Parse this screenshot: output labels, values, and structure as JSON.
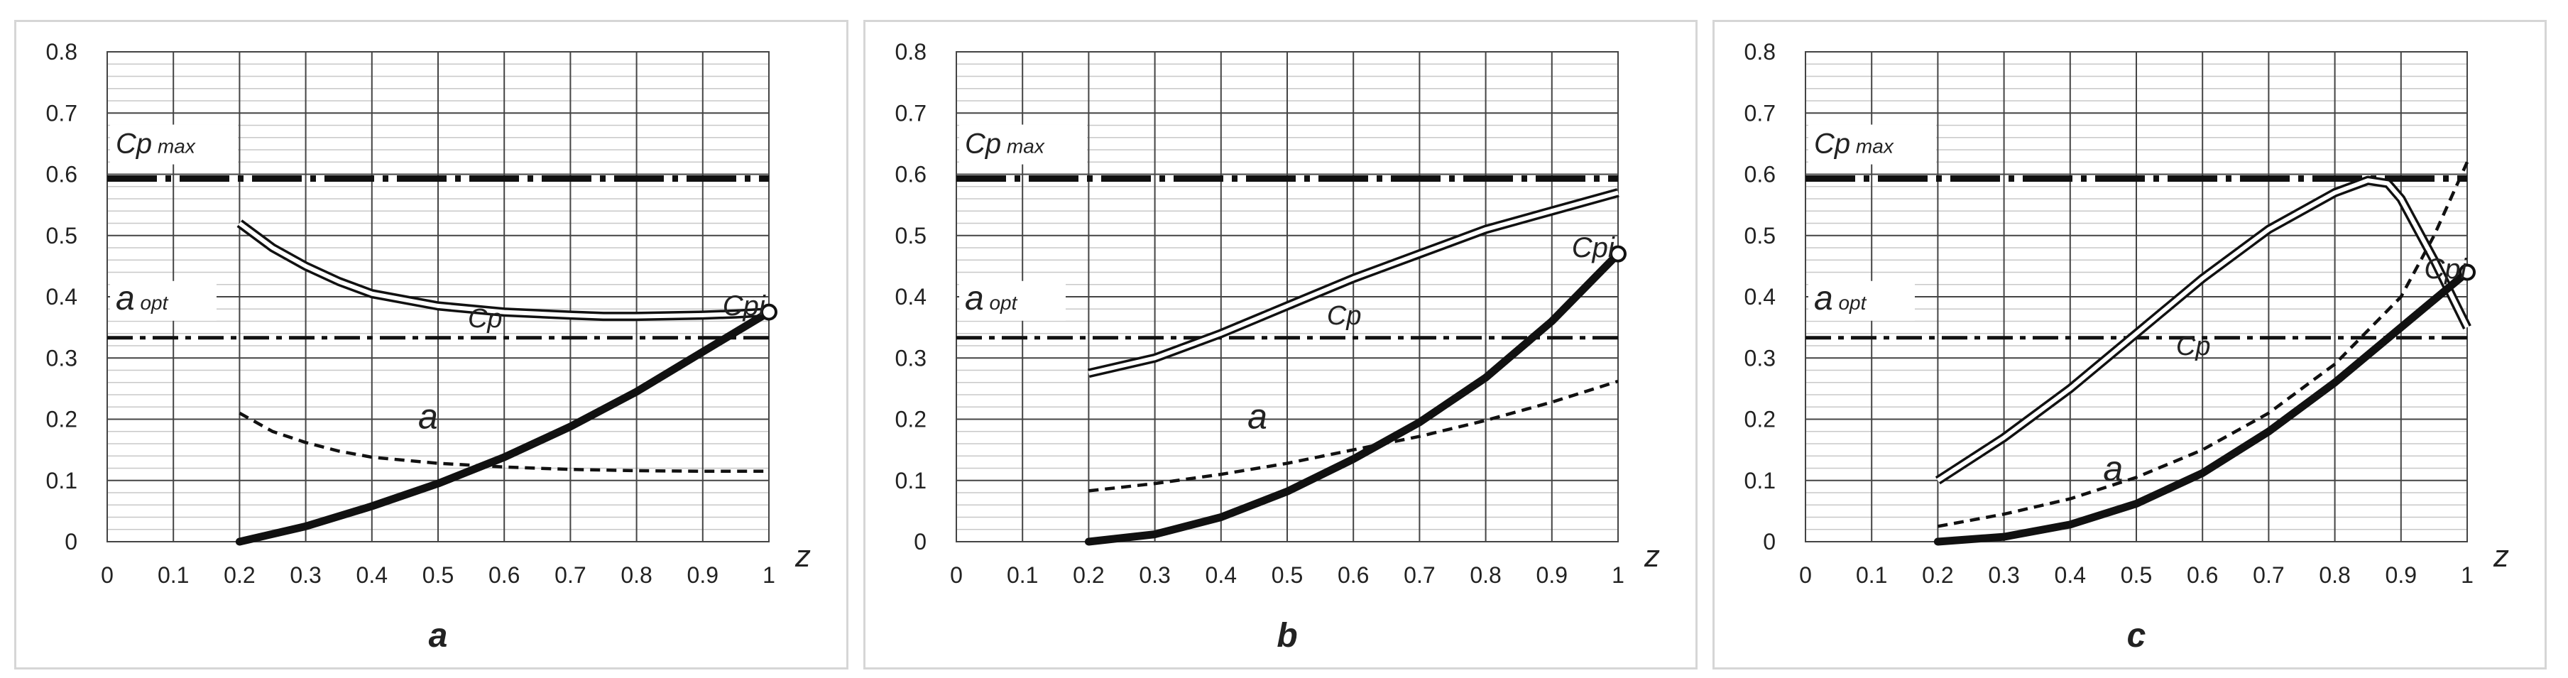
{
  "chart_data": [
    {
      "type": "line",
      "panel_label": "a",
      "xlabel": "z",
      "xlim": [
        0,
        1
      ],
      "ylim": [
        0,
        0.8
      ],
      "x_ticks": [
        "0",
        "0.1",
        "0.2",
        "0.3",
        "0.4",
        "0.5",
        "0.6",
        "0.7",
        "0.8",
        "0.9",
        "1"
      ],
      "y_ticks": [
        "0",
        "0.1",
        "0.2",
        "0.3",
        "0.4",
        "0.5",
        "0.6",
        "0.7",
        "0.8"
      ],
      "reference_lines": [
        {
          "label": "Cp",
          "label_sub": "max",
          "y": 0.593
        },
        {
          "label": "a",
          "label_sub": "opt",
          "y": 0.333
        }
      ],
      "series": [
        {
          "name": "Cp",
          "style": "double",
          "x": [
            0.2,
            0.25,
            0.3,
            0.35,
            0.4,
            0.5,
            0.6,
            0.7,
            0.75,
            0.8,
            0.85,
            0.9,
            0.95,
            1.0
          ],
          "y": [
            0.52,
            0.48,
            0.45,
            0.425,
            0.405,
            0.385,
            0.375,
            0.37,
            0.368,
            0.368,
            0.369,
            0.37,
            0.372,
            0.375
          ]
        },
        {
          "name": "a",
          "style": "dashed",
          "x": [
            0.2,
            0.25,
            0.3,
            0.35,
            0.4,
            0.5,
            0.6,
            0.7,
            0.8,
            0.9,
            1.0
          ],
          "y": [
            0.21,
            0.18,
            0.162,
            0.148,
            0.138,
            0.128,
            0.122,
            0.118,
            0.116,
            0.115,
            0.115
          ]
        },
        {
          "name": "Cpi",
          "style": "thick",
          "marker_end": true,
          "x": [
            0.2,
            0.3,
            0.4,
            0.5,
            0.6,
            0.7,
            0.8,
            0.9,
            1.0
          ],
          "y": [
            0,
            0.025,
            0.058,
            0.095,
            0.138,
            0.188,
            0.245,
            0.31,
            0.375
          ]
        }
      ],
      "annotations": [
        {
          "text": "Cp",
          "x": 0.545,
          "y": 0.35
        },
        {
          "text": "a",
          "x": 0.47,
          "y": 0.185
        },
        {
          "text": "Cpi",
          "x": 0.93,
          "y": 0.37
        }
      ]
    },
    {
      "type": "line",
      "panel_label": "b",
      "xlabel": "z",
      "xlim": [
        0,
        1
      ],
      "ylim": [
        0,
        0.8
      ],
      "x_ticks": [
        "0",
        "0.1",
        "0.2",
        "0.3",
        "0.4",
        "0.5",
        "0.6",
        "0.7",
        "0.8",
        "0.9",
        "1"
      ],
      "y_ticks": [
        "0",
        "0.1",
        "0.2",
        "0.3",
        "0.4",
        "0.5",
        "0.6",
        "0.7",
        "0.8"
      ],
      "reference_lines": [
        {
          "label": "Cp",
          "label_sub": "max",
          "y": 0.593
        },
        {
          "label": "a",
          "label_sub": "opt",
          "y": 0.333
        }
      ],
      "series": [
        {
          "name": "Cp",
          "style": "double",
          "x": [
            0.2,
            0.3,
            0.4,
            0.5,
            0.6,
            0.7,
            0.8,
            0.9,
            1.0
          ],
          "y": [
            0.275,
            0.3,
            0.34,
            0.385,
            0.43,
            0.47,
            0.51,
            0.54,
            0.57
          ]
        },
        {
          "name": "a",
          "style": "dashed",
          "x": [
            0.2,
            0.3,
            0.4,
            0.5,
            0.6,
            0.7,
            0.8,
            0.9,
            1.0
          ],
          "y": [
            0.083,
            0.095,
            0.11,
            0.128,
            0.15,
            0.172,
            0.198,
            0.228,
            0.262
          ]
        },
        {
          "name": "Cpi",
          "style": "thick",
          "marker_end": true,
          "x": [
            0.2,
            0.3,
            0.4,
            0.5,
            0.6,
            0.7,
            0.8,
            0.9,
            1.0
          ],
          "y": [
            0,
            0.012,
            0.04,
            0.082,
            0.135,
            0.195,
            0.268,
            0.36,
            0.47
          ]
        }
      ],
      "annotations": [
        {
          "text": "Cp",
          "x": 0.56,
          "y": 0.355
        },
        {
          "text": "a",
          "x": 0.44,
          "y": 0.185
        },
        {
          "text": "Cpi",
          "x": 0.93,
          "y": 0.465
        }
      ]
    },
    {
      "type": "line",
      "panel_label": "c",
      "xlabel": "z",
      "xlim": [
        0,
        1
      ],
      "ylim": [
        0,
        0.8
      ],
      "x_ticks": [
        "0",
        "0.1",
        "0.2",
        "0.3",
        "0.4",
        "0.5",
        "0.6",
        "0.7",
        "0.8",
        "0.9",
        "1"
      ],
      "y_ticks": [
        "0",
        "0.1",
        "0.2",
        "0.3",
        "0.4",
        "0.5",
        "0.6",
        "0.7",
        "0.8"
      ],
      "reference_lines": [
        {
          "label": "Cp",
          "label_sub": "max",
          "y": 0.593
        },
        {
          "label": "a",
          "label_sub": "opt",
          "y": 0.333
        }
      ],
      "series": [
        {
          "name": "Cp",
          "style": "double",
          "x": [
            0.2,
            0.3,
            0.4,
            0.5,
            0.6,
            0.7,
            0.8,
            0.85,
            0.88,
            0.9,
            0.95,
            1.0
          ],
          "y": [
            0.1,
            0.17,
            0.25,
            0.34,
            0.43,
            0.51,
            0.57,
            0.59,
            0.585,
            0.56,
            0.46,
            0.35
          ]
        },
        {
          "name": "a",
          "style": "dashed",
          "x": [
            0.2,
            0.3,
            0.4,
            0.5,
            0.6,
            0.7,
            0.8,
            0.9,
            0.95,
            1.0
          ],
          "y": [
            0.025,
            0.045,
            0.07,
            0.105,
            0.15,
            0.21,
            0.29,
            0.4,
            0.5,
            0.62
          ]
        },
        {
          "name": "Cpi",
          "style": "thick",
          "marker_end": true,
          "x": [
            0.2,
            0.3,
            0.4,
            0.5,
            0.6,
            0.7,
            0.8,
            0.9,
            1.0
          ],
          "y": [
            0,
            0.008,
            0.028,
            0.062,
            0.112,
            0.18,
            0.26,
            0.35,
            0.44
          ]
        }
      ],
      "annotations": [
        {
          "text": "Cp",
          "x": 0.56,
          "y": 0.305
        },
        {
          "text": "a",
          "x": 0.45,
          "y": 0.1
        },
        {
          "text": "Cpi",
          "x": 0.935,
          "y": 0.43
        }
      ]
    }
  ]
}
